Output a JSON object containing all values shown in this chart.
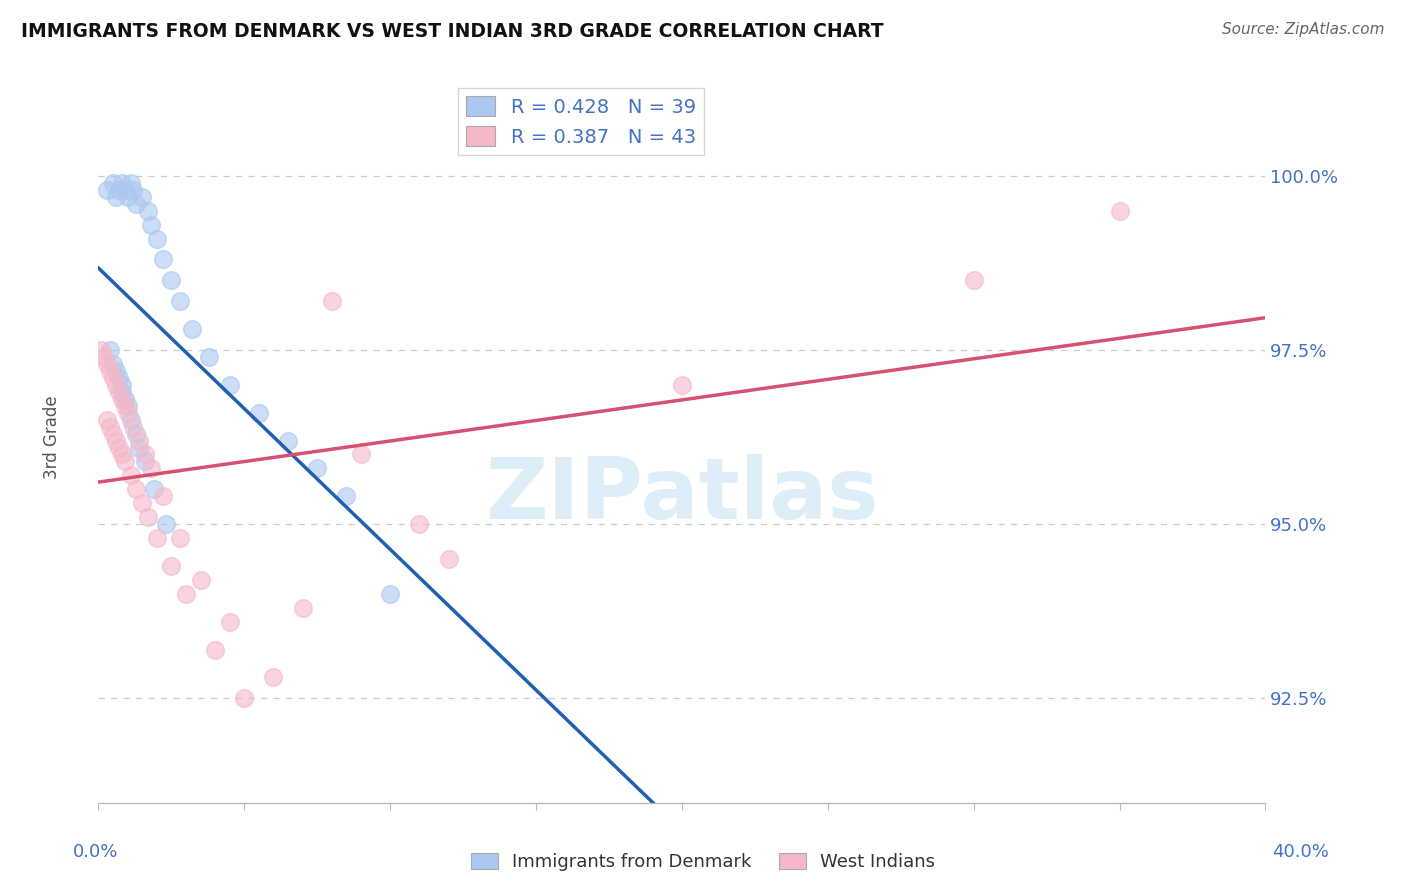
{
  "title": "IMMIGRANTS FROM DENMARK VS WEST INDIAN 3RD GRADE CORRELATION CHART",
  "source_text": "Source: ZipAtlas.com",
  "ylabel": "3rd Grade",
  "ylabel_ticks": [
    "92.5%",
    "95.0%",
    "97.5%",
    "100.0%"
  ],
  "ylabel_values": [
    92.5,
    95.0,
    97.5,
    100.0
  ],
  "xlim": [
    0.0,
    40.0
  ],
  "ylim": [
    91.0,
    101.5
  ],
  "R_blue": 0.428,
  "N_blue": 39,
  "R_pink": 0.387,
  "N_pink": 43,
  "blue_scatter_color": "#aac8f0",
  "pink_scatter_color": "#f5b8c8",
  "blue_line_color": "#2060b0",
  "pink_line_color": "#d85070",
  "background_color": "#ffffff",
  "grid_color": "#cccccc",
  "watermark_color": "#ddeef8",
  "title_color": "#111111",
  "source_color": "#666666",
  "axis_label_color": "#4472c4",
  "ylabel_text_color": "#555555",
  "legend_label_color": "#4472c4",
  "bottom_legend_color": "#333333",
  "denmark_x": [
    0.3,
    0.5,
    0.6,
    0.7,
    0.8,
    0.9,
    1.0,
    1.1,
    1.2,
    1.3,
    1.5,
    1.7,
    1.8,
    2.0,
    2.2,
    2.5,
    2.8,
    3.2,
    3.8,
    4.5,
    5.5,
    6.5,
    7.5,
    8.5,
    0.4,
    0.5,
    0.6,
    0.7,
    0.8,
    0.8,
    0.9,
    1.0,
    1.1,
    1.3,
    1.4,
    1.6,
    1.9,
    2.3,
    10.0
  ],
  "denmark_y": [
    99.8,
    99.9,
    99.7,
    99.8,
    99.9,
    99.8,
    99.7,
    99.9,
    99.8,
    99.6,
    99.7,
    99.5,
    99.3,
    99.1,
    98.8,
    98.5,
    98.2,
    97.8,
    97.4,
    97.0,
    96.6,
    96.2,
    95.8,
    95.4,
    97.5,
    97.3,
    97.2,
    97.1,
    97.0,
    96.9,
    96.8,
    96.7,
    96.5,
    96.3,
    96.1,
    95.9,
    95.5,
    95.0,
    94.0
  ],
  "westindian_x": [
    0.1,
    0.2,
    0.3,
    0.4,
    0.5,
    0.6,
    0.7,
    0.8,
    0.9,
    1.0,
    1.2,
    1.4,
    1.6,
    1.8,
    2.2,
    2.8,
    3.5,
    4.5,
    6.0,
    8.0,
    12.0,
    0.3,
    0.4,
    0.5,
    0.6,
    0.7,
    0.8,
    0.9,
    1.1,
    1.3,
    1.5,
    1.7,
    2.0,
    2.5,
    3.0,
    4.0,
    5.0,
    7.0,
    9.0,
    11.0,
    20.0,
    30.0,
    35.0
  ],
  "westindian_y": [
    97.5,
    97.4,
    97.3,
    97.2,
    97.1,
    97.0,
    96.9,
    96.8,
    96.7,
    96.6,
    96.4,
    96.2,
    96.0,
    95.8,
    95.4,
    94.8,
    94.2,
    93.6,
    92.8,
    98.2,
    94.5,
    96.5,
    96.4,
    96.3,
    96.2,
    96.1,
    96.0,
    95.9,
    95.7,
    95.5,
    95.3,
    95.1,
    94.8,
    94.4,
    94.0,
    93.2,
    92.5,
    93.8,
    96.0,
    95.0,
    97.0,
    98.5,
    99.5
  ]
}
